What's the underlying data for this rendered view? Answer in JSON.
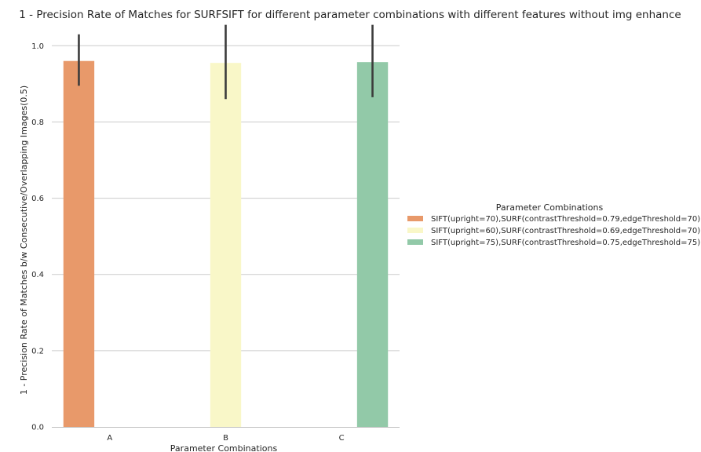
{
  "chart_data": {
    "type": "bar",
    "title": "1 - Precision Rate of Matches for SURFSIFT for different parameter combinations with different features without img enhance",
    "xlabel": "Parameter Combinations",
    "ylabel": "1 - Precision Rate of Matches b/w Consecutive/Overlapping Images(0.5)",
    "categories": [
      "A",
      "B",
      "C"
    ],
    "ylim": [
      0,
      1.05
    ],
    "yticks": [
      "0.0",
      "0.2",
      "0.4",
      "0.6",
      "0.8",
      "1.0"
    ],
    "grid": true,
    "legend": {
      "title": "Parameter Combinations",
      "placement": "center-right"
    },
    "series": [
      {
        "name": "SIFT(upright=70),SURF(contrastThreshold=0.79,edgeThreshold=70)",
        "color": "#e8996a",
        "values": [
          0.96,
          null,
          null
        ],
        "err_low": [
          0.895,
          null,
          null
        ],
        "err_high": [
          1.03,
          null,
          null
        ]
      },
      {
        "name": "SIFT(upright=60),SURF(contrastThreshold=0.69,edgeThreshold=70)",
        "color": "#f9f7c8",
        "values": [
          null,
          0.955,
          null
        ],
        "err_low": [
          null,
          0.86,
          null
        ],
        "err_high": [
          null,
          1.055,
          null
        ]
      },
      {
        "name": "SIFT(upright=75),SURF(contrastThreshold=0.75,edgeThreshold=75)",
        "color": "#92c9a8",
        "values": [
          null,
          null,
          0.957
        ],
        "err_low": [
          null,
          null,
          0.865
        ],
        "err_high": [
          null,
          null,
          1.055
        ]
      }
    ]
  }
}
